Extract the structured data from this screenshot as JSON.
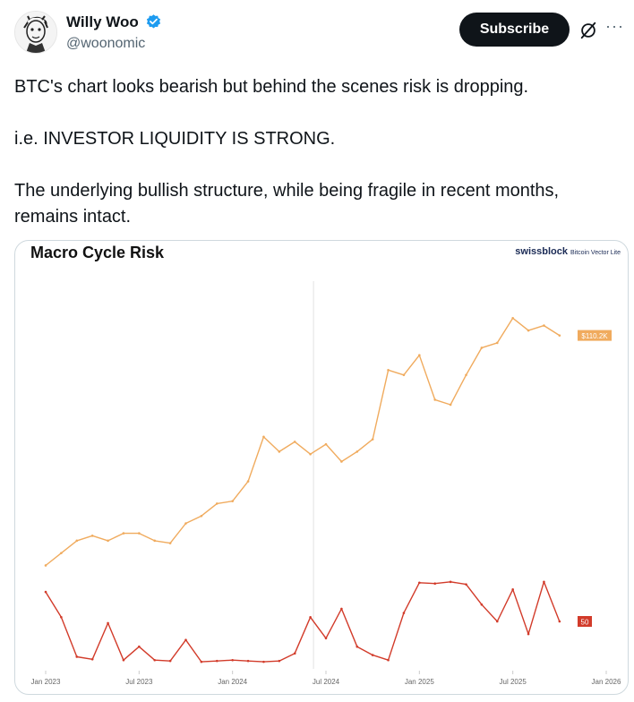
{
  "author": {
    "name": "Willy Woo",
    "handle": "@woonomic",
    "avatar_icon": "sketch-portrait-avatar",
    "verified_icon": "verified-badge-icon"
  },
  "actions": {
    "subscribe_label": "Subscribe",
    "grok_icon": "grok-icon",
    "more_label": "···"
  },
  "tweet": {
    "lines": [
      "BTC's chart looks bearish but behind the scenes risk is dropping.",
      "i.e. INVESTOR LIQUIDITY IS STRONG.",
      "The underlying bullish structure, while being fragile in recent months, remains intact."
    ]
  },
  "chart_data": {
    "type": "line",
    "title": "Macro Cycle Risk",
    "brand": "swissblock",
    "brand_sub": "Bitcoin Vector Lite",
    "x_ticks": [
      "Jan 2023",
      "Jul 2023",
      "Jan 2024",
      "Jul 2024",
      "Jan 2025",
      "Jul 2025",
      "Jan 2026"
    ],
    "highlight_date": "Jun 2024",
    "series": [
      {
        "name": "",
        "color": "#f0ab5e",
        "end_label": "$110.2K",
        "points": [
          [
            "2023-01",
            17
          ],
          [
            "2023-02",
            22
          ],
          [
            "2023-03",
            27
          ],
          [
            "2023-04",
            29
          ],
          [
            "2023-05",
            27
          ],
          [
            "2023-06",
            30
          ],
          [
            "2023-07",
            30
          ],
          [
            "2023-08",
            27
          ],
          [
            "2023-09",
            26
          ],
          [
            "2023-10",
            34
          ],
          [
            "2023-11",
            37
          ],
          [
            "2023-12",
            42
          ],
          [
            "2024-01",
            43
          ],
          [
            "2024-02",
            51
          ],
          [
            "2024-03",
            69
          ],
          [
            "2024-04",
            63
          ],
          [
            "2024-05",
            67
          ],
          [
            "2024-06",
            62
          ],
          [
            "2024-07",
            66
          ],
          [
            "2024-08",
            59
          ],
          [
            "2024-09",
            63
          ],
          [
            "2024-10",
            68
          ],
          [
            "2024-11",
            96
          ],
          [
            "2024-12",
            94
          ],
          [
            "2025-01",
            102
          ],
          [
            "2025-02",
            84
          ],
          [
            "2025-03",
            82
          ],
          [
            "2025-04",
            94
          ],
          [
            "2025-05",
            105
          ],
          [
            "2025-06",
            107
          ],
          [
            "2025-07",
            117
          ],
          [
            "2025-08",
            112
          ],
          [
            "2025-09",
            114
          ],
          [
            "2025-10",
            110
          ]
        ]
      },
      {
        "name": "",
        "color": "#d23b2a",
        "end_label": "50",
        "points": [
          [
            "2023-01",
            85
          ],
          [
            "2023-02",
            55
          ],
          [
            "2023-03",
            8
          ],
          [
            "2023-04",
            5
          ],
          [
            "2023-05",
            48
          ],
          [
            "2023-06",
            4
          ],
          [
            "2023-07",
            20
          ],
          [
            "2023-08",
            4
          ],
          [
            "2023-09",
            3
          ],
          [
            "2023-10",
            28
          ],
          [
            "2023-11",
            2
          ],
          [
            "2023-12",
            3
          ],
          [
            "2024-01",
            4
          ],
          [
            "2024-02",
            3
          ],
          [
            "2024-03",
            2
          ],
          [
            "2024-04",
            3
          ],
          [
            "2024-05",
            12
          ],
          [
            "2024-06",
            55
          ],
          [
            "2024-07",
            30
          ],
          [
            "2024-08",
            65
          ],
          [
            "2024-09",
            20
          ],
          [
            "2024-10",
            10
          ],
          [
            "2024-11",
            4
          ],
          [
            "2024-12",
            60
          ],
          [
            "2025-01",
            96
          ],
          [
            "2025-02",
            95
          ],
          [
            "2025-03",
            97
          ],
          [
            "2025-04",
            94
          ],
          [
            "2025-05",
            70
          ],
          [
            "2025-06",
            50
          ],
          [
            "2025-07",
            88
          ],
          [
            "2025-08",
            35
          ],
          [
            "2025-09",
            97
          ],
          [
            "2025-10",
            50
          ]
        ]
      }
    ]
  }
}
